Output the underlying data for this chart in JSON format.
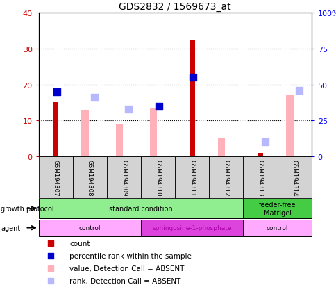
{
  "title": "GDS2832 / 1569673_at",
  "samples": [
    "GSM194307",
    "GSM194308",
    "GSM194309",
    "GSM194310",
    "GSM194311",
    "GSM194312",
    "GSM194313",
    "GSM194314"
  ],
  "count_values": [
    15,
    null,
    null,
    null,
    32.5,
    null,
    1,
    null
  ],
  "count_color": "#cc0000",
  "absent_value_bars": [
    null,
    13,
    9,
    13.5,
    null,
    5,
    null,
    17
  ],
  "absent_value_color": "#ffb0b8",
  "percentile_rank_present": [
    null,
    null,
    null,
    null,
    null,
    null,
    null,
    null
  ],
  "percentile_rank_present_vals_left": [
    18,
    null,
    null,
    14,
    22,
    null,
    null,
    null
  ],
  "percentile_rank_present_color": "#0000cc",
  "absent_rank_vals_right": [
    null,
    41,
    33,
    null,
    null,
    null,
    10,
    46
  ],
  "absent_rank_color": "#b8b8ff",
  "left_ylim": [
    0,
    40
  ],
  "right_ylim": [
    0,
    100
  ],
  "left_yticks": [
    0,
    10,
    20,
    30,
    40
  ],
  "right_yticks": [
    0,
    25,
    50,
    75,
    100
  ],
  "right_yticklabels": [
    "0",
    "25",
    "50",
    "75",
    "100%"
  ],
  "growth_protocol_groups": [
    {
      "label": "standard condition",
      "start": 0,
      "end": 6,
      "color": "#90ee90"
    },
    {
      "label": "feeder-free\nMatrigel",
      "start": 6,
      "end": 8,
      "color": "#44cc44"
    }
  ],
  "agent_groups": [
    {
      "label": "control",
      "start": 0,
      "end": 3,
      "color": "#ffaaff"
    },
    {
      "label": "sphingosine-1-phosphate",
      "start": 3,
      "end": 6,
      "color": "#dd44dd"
    },
    {
      "label": "control",
      "start": 6,
      "end": 8,
      "color": "#ffaaff"
    }
  ],
  "legend_items": [
    {
      "label": "count",
      "color": "#cc0000"
    },
    {
      "label": "percentile rank within the sample",
      "color": "#0000cc"
    },
    {
      "label": "value, Detection Call = ABSENT",
      "color": "#ffb0b8"
    },
    {
      "label": "rank, Detection Call = ABSENT",
      "color": "#b8b8ff"
    }
  ],
  "bar_width": 0.25,
  "dot_size": 55,
  "sample_bg_color": "#d3d3d3"
}
